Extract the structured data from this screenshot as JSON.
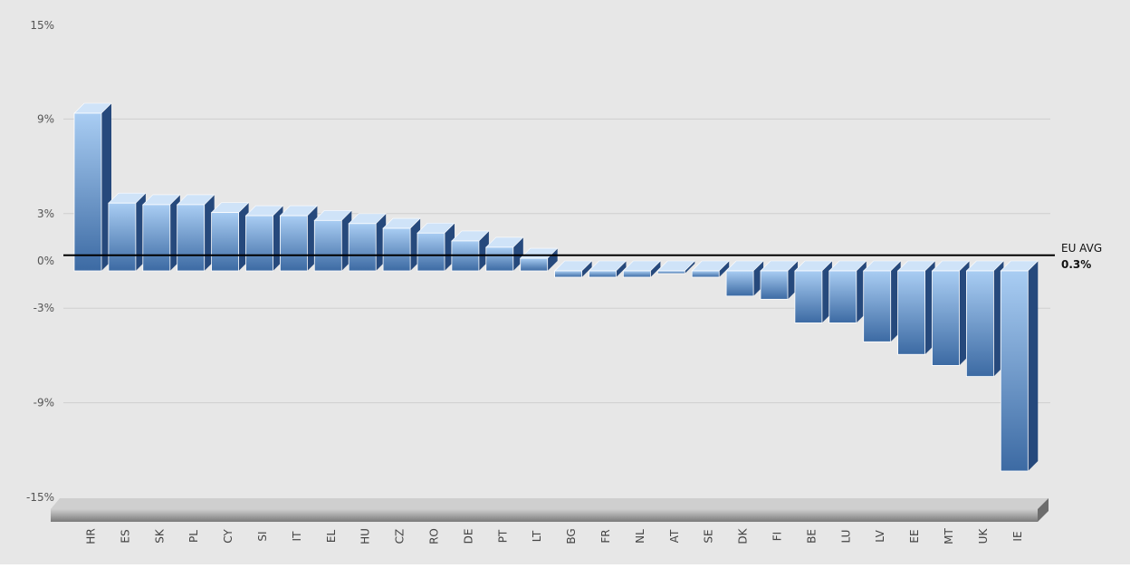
{
  "chart_data": {
    "type": "bar",
    "title": "",
    "xlabel": "",
    "ylabel": "",
    "ylim": [
      -15,
      15
    ],
    "yticks": [
      15,
      9,
      3,
      0,
      -3,
      -9,
      -15
    ],
    "ytick_labels": [
      "15%",
      "9%",
      "3%",
      "0%",
      "-3%",
      "-9%",
      "-15%"
    ],
    "grid": true,
    "categories": [
      "HR",
      "ES",
      "SK",
      "PL",
      "CY",
      "SI",
      "IT",
      "EL",
      "HU",
      "CZ",
      "RO",
      "DE",
      "PT",
      "LT",
      "BG",
      "FR",
      "NL",
      "AT",
      "SE",
      "DK",
      "FI",
      "BE",
      "LU",
      "LV",
      "EE",
      "MT",
      "UK",
      "IE"
    ],
    "values": [
      10.0,
      4.3,
      4.2,
      4.2,
      3.7,
      3.5,
      3.5,
      3.2,
      3.0,
      2.7,
      2.4,
      1.9,
      1.5,
      0.8,
      -0.4,
      -0.4,
      -0.4,
      -0.1,
      -0.4,
      -1.6,
      -1.8,
      -3.3,
      -3.3,
      -4.5,
      -5.3,
      -6.0,
      -6.7,
      -12.7
    ],
    "reference_line": {
      "value": 0.3,
      "label_line1": "EU AVG",
      "label_line2": "0.3%"
    },
    "colors": {
      "bar_front_top": "#a9cdf3",
      "bar_front_bottom": "#3c6aa3",
      "bar_side": "#26497c",
      "bar_top_face": "#cfe3f8",
      "background": "#e7e7e7",
      "gridline": "#cfcfcf",
      "reference_line": "#000000",
      "floor_top": "#cfcfcf",
      "floor_bottom": "#7a7a7a"
    }
  }
}
